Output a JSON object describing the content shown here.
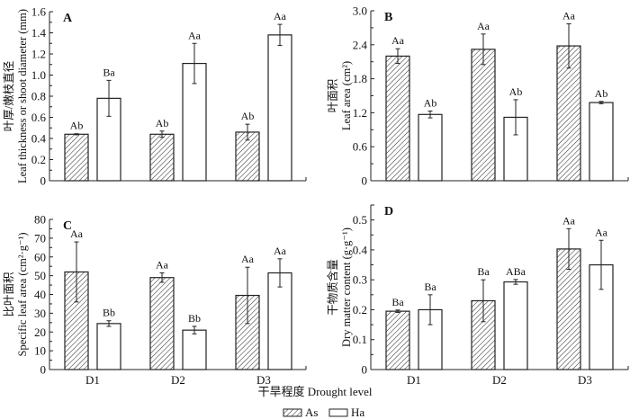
{
  "figure": {
    "x_title": "干旱程度 Drought level",
    "legend": [
      {
        "name": "As",
        "pattern": "hatched"
      },
      {
        "name": "Ha",
        "pattern": "open"
      }
    ]
  },
  "chart_data": [
    {
      "panel": "A",
      "type": "bar",
      "ylabel_cn": "叶厚/嫩枝直径",
      "ylabel_en": "Leaf thickness or shoot diameter (mm)",
      "categories": [
        "D1",
        "D2",
        "D3"
      ],
      "ylim": [
        0,
        1.6
      ],
      "yticks": [
        "0",
        "0.2",
        "0.4",
        "0.6",
        "0.8",
        "1.0",
        "1.2",
        "1.4",
        "1.6"
      ],
      "ytick_values": [
        0,
        0.2,
        0.4,
        0.6,
        0.8,
        1.0,
        1.2,
        1.4,
        1.6
      ],
      "series": [
        {
          "name": "As",
          "values": [
            0.44,
            0.44,
            0.46
          ],
          "errors": [
            0.005,
            0.03,
            0.075
          ],
          "labels": [
            "Ab",
            "Ab",
            "Ab"
          ]
        },
        {
          "name": "Ha",
          "values": [
            0.78,
            1.11,
            1.38
          ],
          "errors": [
            0.17,
            0.19,
            0.1
          ],
          "labels": [
            "Ba",
            "Aa",
            "Aa"
          ]
        }
      ],
      "show_xticklabels": false
    },
    {
      "panel": "B",
      "type": "bar",
      "ylabel_cn": "叶面积",
      "ylabel_en": "Leaf area (cm²)",
      "categories": [
        "D1",
        "D2",
        "D3"
      ],
      "ylim": [
        0,
        3.0
      ],
      "yticks": [
        "0",
        "0.6",
        "1.2",
        "1.8",
        "2.4",
        "3.0"
      ],
      "ytick_values": [
        0,
        0.6,
        1.2,
        1.8,
        2.4,
        3.0
      ],
      "series": [
        {
          "name": "As",
          "values": [
            2.2,
            2.32,
            2.38
          ],
          "errors": [
            0.13,
            0.27,
            0.39
          ],
          "labels": [
            "Aa",
            "Aa",
            "Aa"
          ]
        },
        {
          "name": "Ha",
          "values": [
            1.17,
            1.12,
            1.38
          ],
          "errors": [
            0.06,
            0.31,
            0.02
          ],
          "labels": [
            "Ab",
            "Ab",
            "Ab"
          ]
        }
      ],
      "show_xticklabels": false
    },
    {
      "panel": "C",
      "type": "bar",
      "ylabel_cn": "比叶面积",
      "ylabel_en": "Specific leaf area (cm²·g⁻¹)",
      "categories": [
        "D1",
        "D2",
        "D3"
      ],
      "ylim": [
        0,
        80
      ],
      "yticks": [
        "0",
        "10",
        "20",
        "30",
        "40",
        "50",
        "60",
        "70",
        "80"
      ],
      "ytick_values": [
        0,
        10,
        20,
        30,
        40,
        50,
        60,
        70,
        80
      ],
      "series": [
        {
          "name": "As",
          "values": [
            52,
            49,
            39.5
          ],
          "errors": [
            16,
            2.5,
            15
          ],
          "labels": [
            "Aa",
            "Aa",
            "Aa"
          ]
        },
        {
          "name": "Ha",
          "values": [
            24.5,
            21,
            51.5
          ],
          "errors": [
            1.5,
            2,
            7.5
          ],
          "labels": [
            "Bb",
            "Bb",
            "Aa"
          ]
        }
      ],
      "show_xticklabels": true
    },
    {
      "panel": "D",
      "type": "bar",
      "ylabel_cn": "干物质含量",
      "ylabel_en": "Dry matter content (g·g⁻¹)",
      "categories": [
        "D1",
        "D2",
        "D3"
      ],
      "ylim": [
        0,
        0.55
      ],
      "yticks": [
        "0",
        "0.1",
        "0.2",
        "0.3",
        "0.4",
        "0.5"
      ],
      "ytick_values": [
        0,
        0.1,
        0.2,
        0.3,
        0.4,
        0.5
      ],
      "series": [
        {
          "name": "As",
          "values": [
            0.195,
            0.23,
            0.403
          ],
          "errors": [
            0.004,
            0.07,
            0.068
          ],
          "labels": [
            "Ba",
            "Ba",
            "Aa"
          ]
        },
        {
          "name": "Ha",
          "values": [
            0.2,
            0.293,
            0.35
          ],
          "errors": [
            0.05,
            0.008,
            0.082
          ],
          "labels": [
            "Ba",
            "ABa",
            "Aa"
          ]
        }
      ],
      "show_xticklabels": true
    }
  ]
}
